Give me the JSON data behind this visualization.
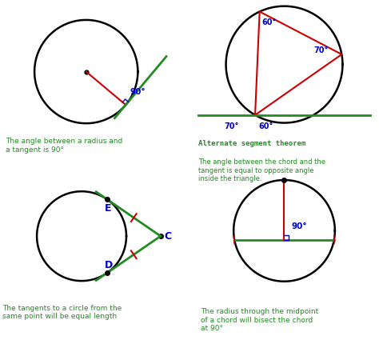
{
  "bg_color": "#ffffff",
  "green": "#228B22",
  "blue": "#0000CD",
  "red": "#CC0000",
  "black": "#000000",
  "panel_texts": {
    "tl": "The angle between a radius and\na tangent is 90°",
    "tr_title": "Alternate segment theorem",
    "tr_body": "The angle between the chord and the\ntangent is equal to opposite angle\ninside the triangle.",
    "bl": "The tangents to a circle from the\nsame point will be equal length",
    "br": "The radius through the midpoint\nof a chord will bisect the chord\nat 90°"
  }
}
